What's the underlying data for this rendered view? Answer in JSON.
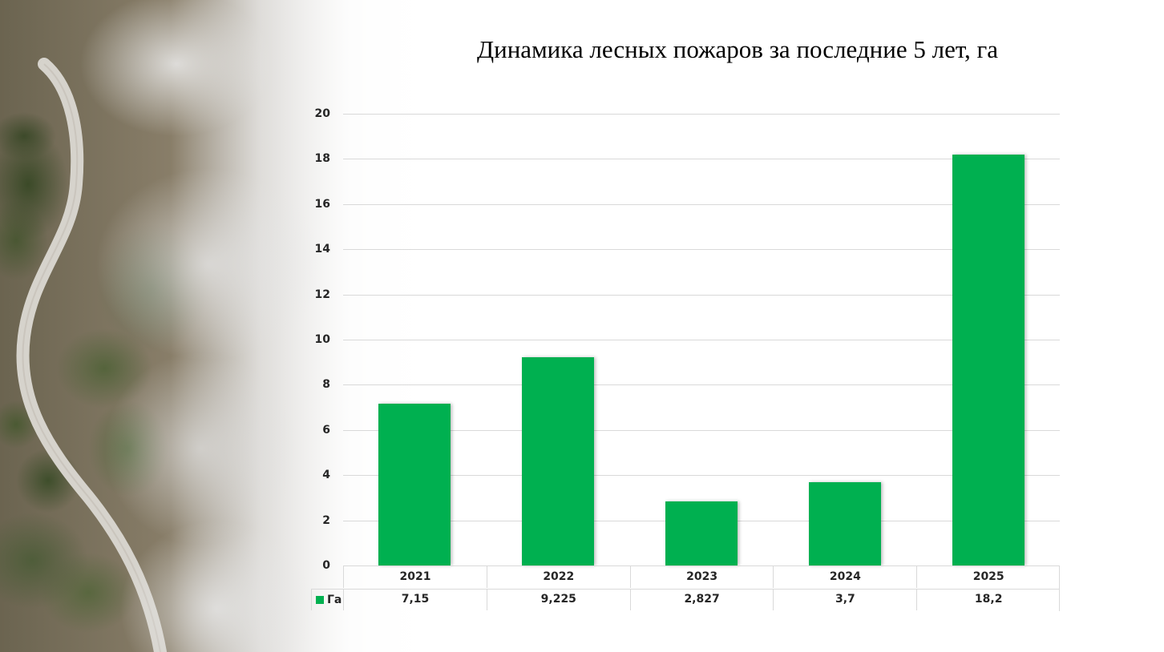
{
  "chart_data": {
    "type": "bar",
    "title": "Динамика лесных пожаров за последние 5 лет, га",
    "xlabel": "",
    "ylabel": "",
    "categories": [
      "2021",
      "2022",
      "2023",
      "2024",
      "2025"
    ],
    "series": [
      {
        "name": "Га",
        "color": "#00b050",
        "values": [
          7.15,
          9.225,
          2.827,
          3.7,
          18.2
        ],
        "labels": [
          "7,15",
          "9,225",
          "2,827",
          "3,7",
          "18,2"
        ]
      }
    ],
    "ylim": [
      0,
      20
    ],
    "yticks": [
      "0",
      "2",
      "4",
      "6",
      "8",
      "10",
      "12",
      "14",
      "16",
      "18",
      "20"
    ],
    "grid": true,
    "legend_position": "data-table",
    "data_table": true
  },
  "title": "Динамика лесных пожаров за последние 5 лет, га",
  "legend": {
    "label": "Га",
    "color": "#00b050"
  },
  "table": {
    "years": [
      "2021",
      "2022",
      "2023",
      "2024",
      "2025"
    ],
    "values": [
      "7,15",
      "9,225",
      "2,827",
      "3,7",
      "18,2"
    ]
  },
  "axis": {
    "yticks": [
      "0",
      "2",
      "4",
      "6",
      "8",
      "10",
      "12",
      "14",
      "16",
      "18",
      "20"
    ]
  }
}
